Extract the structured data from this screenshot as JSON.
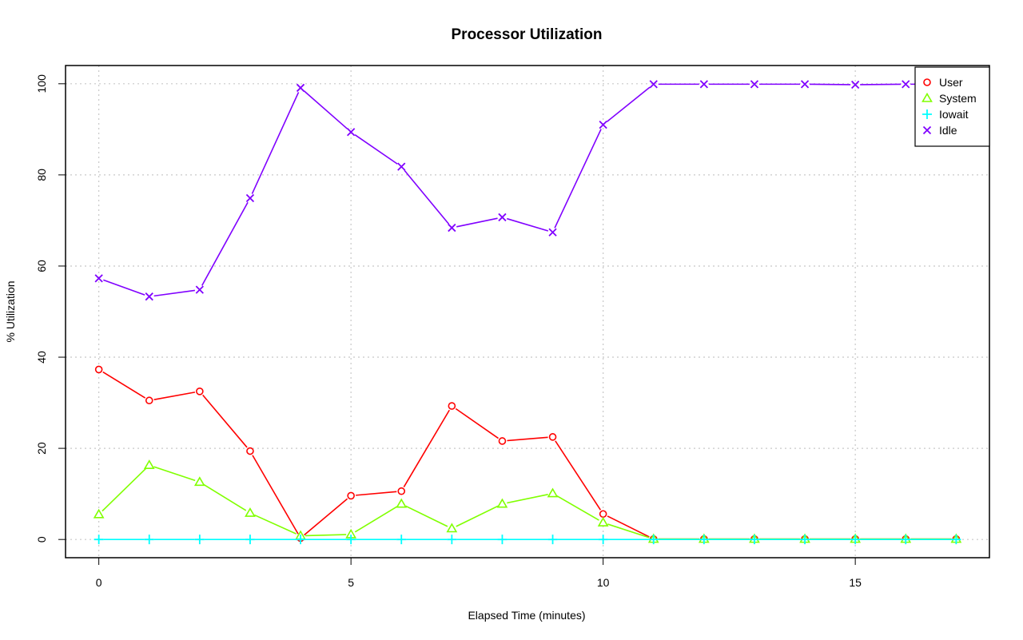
{
  "chart_data": {
    "type": "line",
    "title": "Processor Utilization",
    "xlabel": "Elapsed Time (minutes)",
    "ylabel": "% Utilization",
    "xlim": [
      -0.66,
      17.66
    ],
    "ylim": [
      -4,
      104
    ],
    "x_ticks": [
      0,
      5,
      10,
      15
    ],
    "y_ticks": [
      0,
      20,
      40,
      60,
      80,
      100
    ],
    "grid": true,
    "legend_position": "top-right",
    "x": [
      0,
      1,
      2,
      3,
      4,
      5,
      6,
      7,
      8,
      9,
      10,
      11,
      12,
      13,
      14,
      15,
      16,
      17
    ],
    "series": [
      {
        "name": "User",
        "color": "#ff0000",
        "marker": "circle",
        "values": [
          37.3,
          30.5,
          32.5,
          19.4,
          0.3,
          9.6,
          10.6,
          29.3,
          21.6,
          22.5,
          5.6,
          0.1,
          0.1,
          0.1,
          0.1,
          0.1,
          0.1,
          0.1
        ]
      },
      {
        "name": "System",
        "color": "#80ff00",
        "marker": "triangle",
        "values": [
          5.5,
          16.3,
          12.6,
          5.8,
          0.8,
          1.1,
          7.8,
          2.4,
          7.8,
          10.1,
          3.7,
          0.1,
          0.1,
          0.1,
          0.1,
          0.1,
          0.1,
          0.1
        ]
      },
      {
        "name": "Iowait",
        "color": "#00ffff",
        "marker": "plus",
        "values": [
          0,
          0,
          0,
          0,
          0,
          0,
          0,
          0,
          0,
          0,
          0,
          0,
          0,
          0,
          0,
          0,
          0,
          0
        ]
      },
      {
        "name": "Idle",
        "color": "#8000ff",
        "marker": "cross",
        "values": [
          57.3,
          53.3,
          54.8,
          74.9,
          99.1,
          89.4,
          81.8,
          68.4,
          70.7,
          67.4,
          91.0,
          99.9,
          99.9,
          99.9,
          99.9,
          99.8,
          99.9,
          99.9
        ]
      }
    ]
  }
}
